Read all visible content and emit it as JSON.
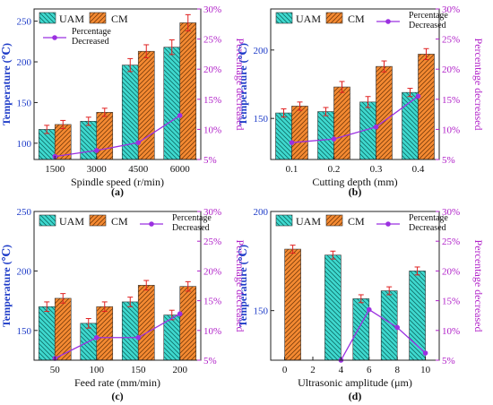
{
  "colors": {
    "uam_fill": "#3fd9cf",
    "uam_hatch": "#0d6c66",
    "cm_fill": "#f58a32",
    "cm_hatch": "#7a3c0a",
    "percent_line": "#9b30e0",
    "error_bar": "#e02020",
    "left_axis_text": "#1e3cc8",
    "right_axis_text": "#b020c8"
  },
  "legend": {
    "uam": "UAM",
    "cm": "CM",
    "percent_line1": "Percentage",
    "percent_line2": "Decreased"
  },
  "chart_data": [
    {
      "panel": "(a)",
      "type": "bar",
      "xlabel": "Spindle speed (r/min)",
      "ylabel": "Temperature (℃)",
      "y2label": "Percentage decreased",
      "categories": [
        "1500",
        "3000",
        "4500",
        "6000"
      ],
      "ylim": [
        80,
        265
      ],
      "yticks": [
        100,
        150,
        200,
        250
      ],
      "y2lim": [
        5,
        30
      ],
      "y2ticks": [
        "5%",
        "10%",
        "15%",
        "20%",
        "25%",
        "30%"
      ],
      "series": [
        {
          "name": "UAM",
          "values": [
            117,
            127,
            196,
            218
          ],
          "errors": [
            5,
            5,
            8,
            9
          ]
        },
        {
          "name": "CM",
          "values": [
            123,
            138,
            213,
            248
          ],
          "errors": [
            5,
            5,
            8,
            10
          ]
        },
        {
          "name": "Percentage Decreased",
          "values": [
            5.5,
            6.5,
            7.8,
            12.3
          ]
        }
      ]
    },
    {
      "panel": "(b)",
      "type": "bar",
      "xlabel": "Cutting depth (mm)",
      "ylabel": "Temperature (℃)",
      "y2label": "Percentage decreased",
      "categories": [
        "0.1",
        "0.2",
        "0.3",
        "0.4"
      ],
      "ylim": [
        120,
        230
      ],
      "yticks": [
        150,
        200
      ],
      "y2lim": [
        5,
        30
      ],
      "y2ticks": [
        "5%",
        "10%",
        "15%",
        "20%",
        "25%",
        "30%"
      ],
      "series": [
        {
          "name": "UAM",
          "values": [
            154,
            155,
            162,
            169
          ],
          "errors": [
            3,
            3,
            4,
            3
          ]
        },
        {
          "name": "CM",
          "values": [
            159,
            173,
            188,
            197
          ],
          "errors": [
            3,
            4,
            4,
            4
          ]
        },
        {
          "name": "Percentage Decreased",
          "values": [
            7.8,
            8.4,
            10.4,
            15.5
          ]
        }
      ]
    },
    {
      "panel": "(c)",
      "type": "bar",
      "xlabel": "Feed rate  (mm/min)",
      "ylabel": "Temperature (℃)",
      "y2label": "Percentage decreased",
      "categories": [
        "50",
        "100",
        "150",
        "200"
      ],
      "ylim": [
        125,
        250
      ],
      "yticks": [
        150,
        200,
        250
      ],
      "y2lim": [
        5,
        30
      ],
      "y2ticks": [
        "5%",
        "10%",
        "15%",
        "20%",
        "25%",
        "30%"
      ],
      "series": [
        {
          "name": "UAM",
          "values": [
            170,
            156,
            174,
            163
          ],
          "errors": [
            4,
            4,
            4,
            4
          ]
        },
        {
          "name": "CM",
          "values": [
            177,
            170,
            188,
            187
          ],
          "errors": [
            4,
            4,
            4,
            4
          ]
        },
        {
          "name": "Percentage Decreased",
          "values": [
            5.3,
            8.8,
            8.8,
            12.8
          ]
        }
      ]
    },
    {
      "panel": "(d)",
      "type": "bar",
      "xlabel": "Ultrasonic amplitude (μm)",
      "ylabel": "Temperature (℃)",
      "y2label": "Percentage decreased",
      "categories": [
        "0",
        "2",
        "4",
        "6",
        "8",
        "10"
      ],
      "ylim": [
        125,
        200
      ],
      "yticks": [
        150,
        200
      ],
      "y2lim": [
        5,
        30
      ],
      "y2ticks": [
        "5%",
        "10%",
        "15%",
        "20%",
        "25%",
        "30%"
      ],
      "series": [
        {
          "name": "UAM",
          "values": [
            null,
            null,
            178,
            156,
            160,
            170
          ],
          "errors": [
            null,
            null,
            2,
            2,
            2,
            2
          ]
        },
        {
          "name": "CM",
          "values": [
            181,
            null,
            null,
            null,
            null,
            null
          ],
          "errors": [
            2,
            null,
            null,
            null,
            null,
            null
          ]
        },
        {
          "name": "Percentage Decreased",
          "values": [
            null,
            null,
            5.0,
            13.5,
            10.5,
            6.2
          ]
        }
      ]
    }
  ]
}
